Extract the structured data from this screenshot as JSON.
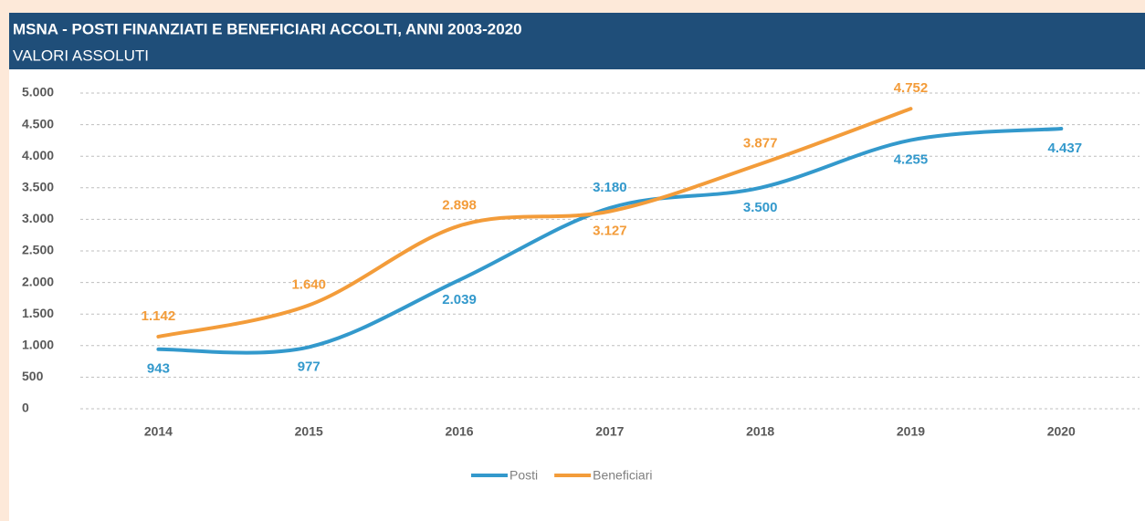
{
  "chart_data": {
    "type": "line",
    "title": "MSNA - POSTI FINANZIATI E BENEFICIARI ACCOLTI, ANNI 2003-2020",
    "subtitle": "VALORI ASSOLUTI",
    "categories": [
      "2014",
      "2015",
      "2016",
      "2017",
      "2018",
      "2019",
      "2020"
    ],
    "series": [
      {
        "name": "Posti",
        "color": "#3399cc",
        "values": [
          943,
          977,
          2039,
          3180,
          3500,
          4255,
          4437
        ],
        "value_labels": [
          "943",
          "977",
          "2.039",
          "3.180",
          "3.500",
          "4.255",
          "4.437"
        ]
      },
      {
        "name": "Beneficiari",
        "color": "#f39c3a",
        "values": [
          1142,
          1640,
          2898,
          3127,
          3877,
          4752,
          null
        ],
        "value_labels": [
          "1.142",
          "1.640",
          "2.898",
          "3.127",
          "3.877",
          "4.752",
          null
        ]
      }
    ],
    "ylim": [
      0,
      5000
    ],
    "yticks": [
      0,
      500,
      {
        "value": 1000,
        "label": "1.000"
      },
      {
        "value": 1500,
        "label": "1.500"
      },
      {
        "value": 2000,
        "label": "2.000"
      },
      {
        "value": 2500,
        "label": "2.500"
      },
      {
        "value": 3000,
        "label": "3.000"
      },
      {
        "value": 3500,
        "label": "3.500"
      },
      {
        "value": 4000,
        "label": "4.000"
      },
      {
        "value": 4500,
        "label": "4.500"
      },
      {
        "value": 5000,
        "label": "5.000"
      }
    ],
    "grid": true,
    "legend": "bottom"
  }
}
